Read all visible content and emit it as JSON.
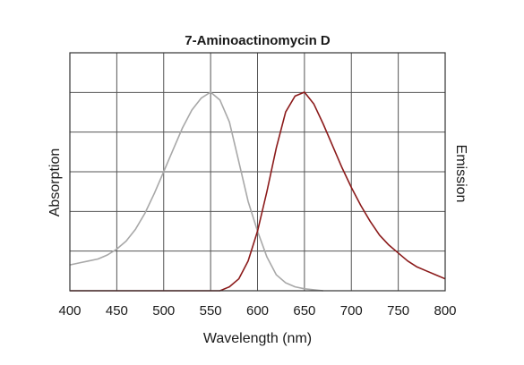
{
  "chart_data": {
    "type": "line",
    "title": "7-Aminoactinomycin D",
    "xlabel": "Wavelength (nm)",
    "ylabel_left": "Absorption",
    "ylabel_right": "Emission",
    "xlim": [
      400,
      800
    ],
    "ylim": [
      0,
      1.0
    ],
    "x_ticks": [
      400,
      450,
      500,
      550,
      600,
      650,
      700,
      750,
      800
    ],
    "y_gridlines": 5,
    "grid": true,
    "legend": "none",
    "series": [
      {
        "role": "absorption",
        "color": "#a8a8a8",
        "x": [
          400,
          410,
          420,
          430,
          440,
          450,
          460,
          470,
          480,
          490,
          500,
          510,
          520,
          530,
          540,
          550,
          560,
          570,
          580,
          590,
          600,
          610,
          620,
          630,
          640,
          650,
          660,
          670
        ],
        "y": [
          0.13,
          0.14,
          0.15,
          0.16,
          0.18,
          0.21,
          0.25,
          0.31,
          0.39,
          0.49,
          0.6,
          0.71,
          0.82,
          0.91,
          0.97,
          1.0,
          0.96,
          0.85,
          0.65,
          0.45,
          0.3,
          0.17,
          0.08,
          0.04,
          0.02,
          0.01,
          0.005,
          0.0
        ]
      },
      {
        "role": "emission",
        "color": "#8b1a1a",
        "x": [
          400,
          560,
          570,
          580,
          590,
          600,
          610,
          620,
          630,
          640,
          650,
          660,
          670,
          680,
          690,
          700,
          710,
          720,
          730,
          740,
          750,
          760,
          770,
          780,
          790,
          800
        ],
        "y": [
          0.0,
          0.0,
          0.02,
          0.06,
          0.15,
          0.3,
          0.5,
          0.72,
          0.9,
          0.98,
          1.0,
          0.94,
          0.84,
          0.73,
          0.62,
          0.52,
          0.43,
          0.35,
          0.28,
          0.23,
          0.19,
          0.15,
          0.12,
          0.1,
          0.08,
          0.06
        ]
      }
    ]
  }
}
